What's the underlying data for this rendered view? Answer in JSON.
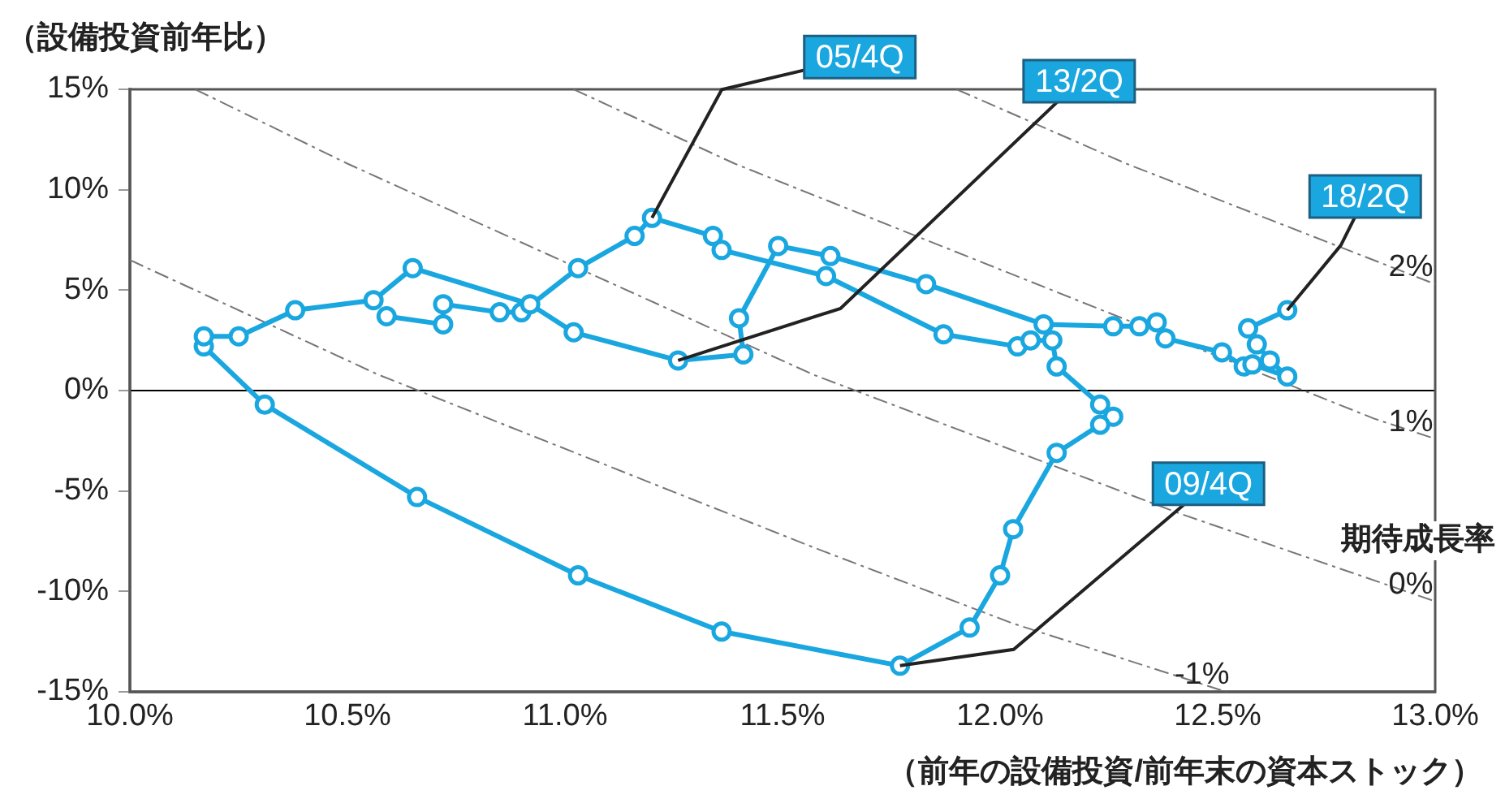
{
  "chart_data": {
    "type": "line",
    "ylabel": "（設備投資前年比）",
    "xlabel": "（前年の設備投資/前年末の資本ストック）",
    "xlim": [
      10,
      13
    ],
    "xticks": [
      {
        "value": 10,
        "label": "10.0%"
      },
      {
        "value": 10.5,
        "label": "10.5%"
      },
      {
        "value": 11,
        "label": "11.0%"
      },
      {
        "value": 11.5,
        "label": "11.5%"
      },
      {
        "value": 12,
        "label": "12.0%"
      },
      {
        "value": 12.5,
        "label": "12.5%"
      },
      {
        "value": 13,
        "label": "13.0%"
      }
    ],
    "ylim": [
      -15,
      15
    ],
    "yticks": [
      {
        "value": -15,
        "label": "-15%"
      },
      {
        "value": -10,
        "label": "-10%"
      },
      {
        "value": -5,
        "label": "-5%"
      },
      {
        "value": 0,
        "label": "0%"
      },
      {
        "value": 5,
        "label": "5%"
      },
      {
        "value": 10,
        "label": "10%"
      },
      {
        "value": 15,
        "label": "15%"
      }
    ],
    "grid": false,
    "legend": false,
    "marker": "circle",
    "line_style": "solid",
    "ref_lines": [
      {
        "axis": "y",
        "value": 0,
        "color": "#000000"
      }
    ],
    "series": [
      {
        "name": "2%",
        "color": "#777777",
        "line_style": "dashed",
        "marker": "none",
        "x": [
          11.9,
          12.29,
          13.0
        ],
        "values": [
          15,
          11.3,
          5.3
        ]
      },
      {
        "name": "1%",
        "color": "#777777",
        "line_style": "dashed",
        "marker": "none",
        "x": [
          11.02,
          11.39,
          12.86,
          13.0
        ],
        "values": [
          15,
          11.3,
          -1.4,
          -2.4
        ]
      },
      {
        "name": "0%",
        "color": "#777777",
        "line_style": "dashed",
        "marker": "none",
        "x": [
          10.15,
          10.5,
          11.57,
          12.41,
          12.92,
          13.0
        ],
        "values": [
          15,
          11.3,
          0.8,
          -6.1,
          -9.9,
          -10.5
        ]
      },
      {
        "name": "-1%",
        "color": "#777777",
        "line_style": "dashed",
        "marker": "none",
        "x": [
          10.0,
          10.57,
          11.57,
          12.03,
          12.52
        ],
        "values": [
          6.5,
          0.8,
          -7.8,
          -11.6,
          -15
        ]
      },
      {
        "color": "#1aa7e0",
        "x": [
          10.59,
          10.72,
          10.72,
          10.85,
          10.9,
          11.03,
          11.16,
          11.2,
          11.34,
          11.36,
          11.6,
          11.87,
          12.04,
          12.07,
          12.12,
          12.13,
          12.23,
          12.26,
          12.23,
          12.13,
          12.03,
          12.0,
          11.93,
          11.77,
          11.36,
          11.03,
          10.66,
          10.31,
          10.17,
          10.17,
          10.25,
          10.38,
          10.56,
          10.65,
          10.92,
          11.02,
          11.26,
          11.41,
          11.4,
          11.49,
          11.61,
          11.83,
          12.1,
          12.26,
          12.32,
          12.36,
          12.38,
          12.51,
          12.56,
          12.58,
          12.66,
          12.62,
          12.59,
          12.57,
          12.66
        ],
        "values": [
          3.7,
          3.3,
          4.3,
          3.9,
          3.9,
          6.1,
          7.7,
          8.6,
          7.7,
          7.0,
          5.7,
          2.8,
          2.2,
          2.5,
          2.5,
          1.2,
          -0.7,
          -1.3,
          -1.7,
          -3.1,
          -6.9,
          -9.2,
          -11.8,
          -13.7,
          -12.0,
          -9.2,
          -5.3,
          -0.7,
          2.2,
          2.7,
          2.7,
          4.0,
          4.5,
          6.1,
          4.3,
          2.9,
          1.5,
          1.8,
          3.6,
          7.2,
          6.7,
          5.3,
          3.3,
          3.2,
          3.2,
          3.4,
          2.6,
          1.9,
          1.2,
          1.3,
          0.7,
          1.5,
          2.3,
          3.1,
          4.0
        ]
      }
    ],
    "annotations": [
      {
        "text": "05/4Q",
        "x": 11.2,
        "y": 8.6
      },
      {
        "text": "13/2Q",
        "x": 11.26,
        "y": 1.5
      },
      {
        "text": "09/4Q",
        "x": 11.77,
        "y": -13.7
      },
      {
        "text": "18/2Q",
        "x": 12.66,
        "y": 4.0
      },
      "期待成長率"
    ]
  }
}
